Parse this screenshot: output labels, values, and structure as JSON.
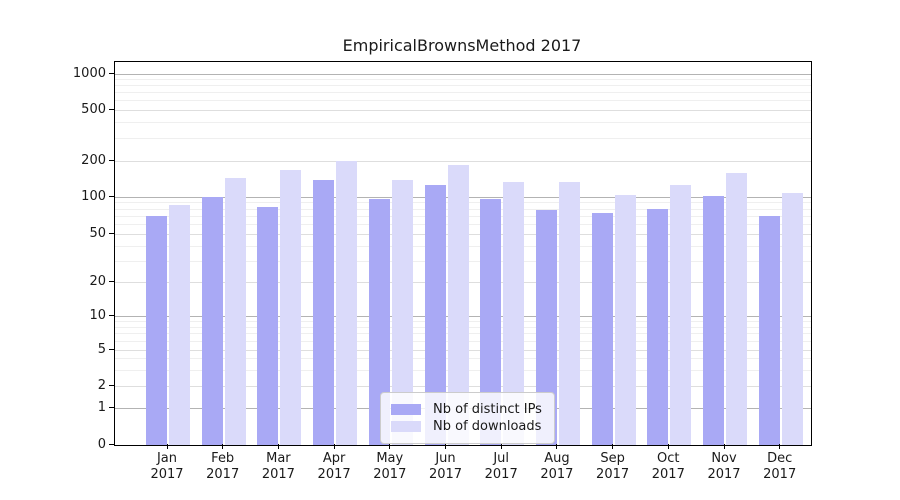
{
  "title": "EmpiricalBrownsMethod 2017",
  "colors": {
    "ips_bar": "#a9a9f5",
    "downloads_bar": "#dadafa",
    "grid_major": "#b3b3b3",
    "grid_mid": "#dedede",
    "grid_minor": "#efefef",
    "spine": "#000000"
  },
  "y_axis": {
    "scale": "symlog",
    "tick_values": [
      0,
      1,
      2,
      5,
      10,
      20,
      50,
      100,
      200,
      500,
      1000
    ],
    "tick_labels": [
      "0",
      "1",
      "2",
      "5",
      "10",
      "20",
      "50",
      "100",
      "200",
      "500",
      "1000"
    ]
  },
  "x_axis": {
    "tick_labels_line1": [
      "Jan",
      "Feb",
      "Mar",
      "Apr",
      "May",
      "Jun",
      "Jul",
      "Aug",
      "Sep",
      "Oct",
      "Nov",
      "Dec"
    ],
    "tick_labels_line2": [
      "2017",
      "2017",
      "2017",
      "2017",
      "2017",
      "2017",
      "2017",
      "2017",
      "2017",
      "2017",
      "2017",
      "2017"
    ]
  },
  "legend": {
    "position": "lower center",
    "items": [
      {
        "label": "Nb of distinct IPs",
        "color": "#a9a9f5"
      },
      {
        "label": "Nb of downloads",
        "color": "#dadafa"
      }
    ]
  },
  "chart_data": {
    "type": "bar",
    "title": "EmpiricalBrownsMethod 2017",
    "xlabel": "",
    "ylabel": "",
    "yscale": "symlog",
    "ylim": [
      0,
      1000
    ],
    "grid": true,
    "legend_position": "lower center",
    "categories": [
      "Jan 2017",
      "Feb 2017",
      "Mar 2017",
      "Apr 2017",
      "May 2017",
      "Jun 2017",
      "Jul 2017",
      "Aug 2017",
      "Sep 2017",
      "Oct 2017",
      "Nov 2017",
      "Dec 2017"
    ],
    "series": [
      {
        "name": "Nb of distinct IPs",
        "color": "#a9a9f5",
        "values": [
          70,
          100,
          83,
          140,
          97,
          127,
          96,
          78,
          75,
          80,
          101,
          71
        ]
      },
      {
        "name": "Nb of downloads",
        "color": "#dadafa",
        "values": [
          86,
          143,
          168,
          200,
          140,
          185,
          133,
          133,
          104,
          125,
          158,
          109
        ]
      }
    ]
  }
}
